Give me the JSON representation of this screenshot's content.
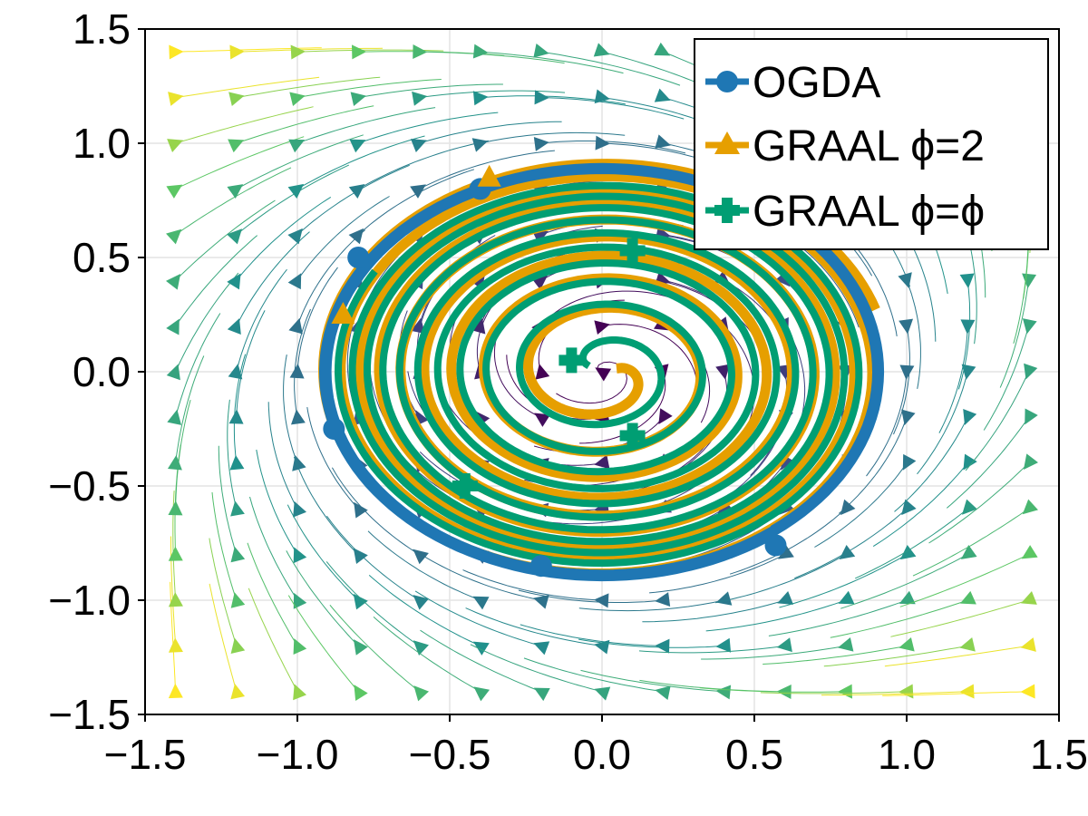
{
  "chart_data": {
    "type": "line",
    "xlim": [
      -1.5,
      1.5
    ],
    "ylim": [
      -1.5,
      1.5
    ],
    "xticks": [
      -1.5,
      -1.0,
      -0.5,
      0.0,
      0.5,
      1.0,
      1.5
    ],
    "yticks": [
      -1.5,
      -1.0,
      -0.5,
      0.0,
      0.5,
      1.0,
      1.5
    ],
    "xtick_labels": [
      "−1.5",
      "−1.0",
      "−0.5",
      "0.0",
      "0.5",
      "1.0",
      "1.5"
    ],
    "ytick_labels": [
      "−1.5",
      "−1.0",
      "−0.5",
      "0.0",
      "0.5",
      "1.0",
      "1.5"
    ],
    "grid": true,
    "legend_position": "top-right",
    "background": "vector field streamlines (viridis colormap by speed)",
    "series": [
      {
        "name": "OGDA",
        "color": "#1f77b4",
        "marker": "circle",
        "description": "spiral converging onto a limit cycle of radius ~0.9",
        "r_start": 0.92,
        "r_end": 0.9,
        "start_point": [
          0.57,
          -0.76
        ]
      },
      {
        "name": "GRAAL ϕ=2",
        "color": "#e69f00",
        "marker": "triangle",
        "description": "spiral that grows from the origin onto the limit cycle",
        "r_start": 0.05,
        "r_end": 0.94,
        "start_point": [
          0.0,
          0.0
        ]
      },
      {
        "name": "GRAAL ϕ=ϕ",
        "color": "#009e73",
        "marker": "cross",
        "description": "spiral that grows from the origin onto the limit cycle",
        "r_start": 0.05,
        "r_end": 0.87,
        "start_point": [
          -0.1,
          0.05
        ]
      }
    ]
  },
  "legend": {
    "items": [
      {
        "label": "OGDA",
        "color": "#1f77b4",
        "marker": "circle"
      },
      {
        "label": "GRAAL ϕ=2",
        "color": "#e69f00",
        "marker": "triangle"
      },
      {
        "label": "GRAAL ϕ=ϕ",
        "color": "#009e73",
        "marker": "cross"
      }
    ]
  }
}
